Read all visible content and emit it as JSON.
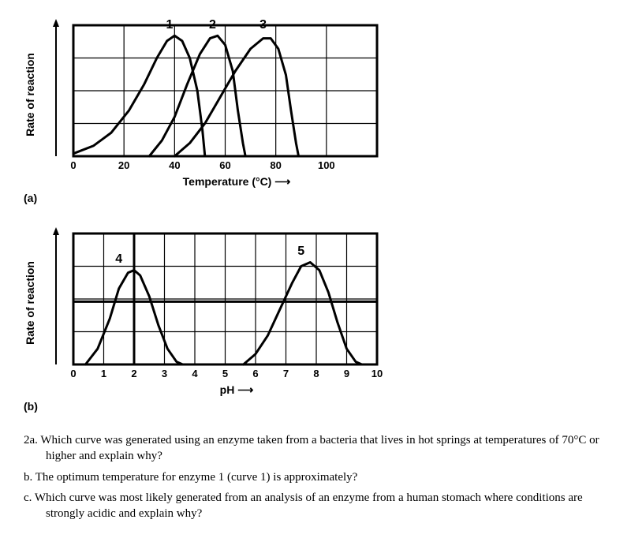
{
  "chartA": {
    "type": "line",
    "panel_label": "(a)",
    "y_label": "Rate of reaction",
    "x_label": "Temperature (°C)",
    "xlim": [
      0,
      120
    ],
    "ylim": [
      0,
      100
    ],
    "xtick_step": 20,
    "xtick_labels": [
      "0",
      "20",
      "40",
      "60",
      "80",
      "100"
    ],
    "grid_cols": 6,
    "grid_rows": 4,
    "border_width": 3,
    "grid_width": 1.2,
    "curve_width": 3,
    "background_color": "#ffffff",
    "line_color": "#000000",
    "grid_color": "#000000",
    "text_fontsize": 13,
    "curve_label_fontsize": 16,
    "curves": [
      {
        "label": "1",
        "label_x": 38,
        "label_y": 100,
        "points": [
          [
            0,
            2
          ],
          [
            8,
            8
          ],
          [
            15,
            18
          ],
          [
            22,
            35
          ],
          [
            28,
            55
          ],
          [
            33,
            75
          ],
          [
            37,
            88
          ],
          [
            40,
            92
          ],
          [
            43,
            88
          ],
          [
            46,
            75
          ],
          [
            49,
            50
          ],
          [
            51,
            20
          ],
          [
            52,
            0
          ]
        ]
      },
      {
        "label": "2",
        "label_x": 55,
        "label_y": 100,
        "points": [
          [
            30,
            0
          ],
          [
            35,
            12
          ],
          [
            40,
            30
          ],
          [
            45,
            55
          ],
          [
            50,
            78
          ],
          [
            54,
            90
          ],
          [
            57,
            92
          ],
          [
            60,
            85
          ],
          [
            63,
            65
          ],
          [
            65,
            35
          ],
          [
            67,
            10
          ],
          [
            68,
            0
          ]
        ]
      },
      {
        "label": "3",
        "label_x": 75,
        "label_y": 100,
        "points": [
          [
            40,
            0
          ],
          [
            46,
            10
          ],
          [
            52,
            25
          ],
          [
            58,
            45
          ],
          [
            64,
            65
          ],
          [
            70,
            82
          ],
          [
            75,
            90
          ],
          [
            78,
            90
          ],
          [
            81,
            82
          ],
          [
            84,
            62
          ],
          [
            86,
            35
          ],
          [
            88,
            10
          ],
          [
            89,
            0
          ]
        ]
      }
    ]
  },
  "chartB": {
    "type": "line",
    "panel_label": "(b)",
    "y_label": "Rate of reaction",
    "x_label": "pH",
    "xlim": [
      0,
      10
    ],
    "ylim": [
      0,
      100
    ],
    "xtick_step": 1,
    "xtick_labels": [
      "0",
      "1",
      "2",
      "3",
      "4",
      "5",
      "6",
      "7",
      "8",
      "9",
      "10"
    ],
    "grid_cols": 10,
    "grid_rows": 4,
    "border_width": 3,
    "grid_width": 1.2,
    "curve_width": 3,
    "background_color": "#ffffff",
    "line_color": "#000000",
    "grid_color": "#000000",
    "text_fontsize": 13,
    "curve_label_fontsize": 16,
    "vertical_emphasis_x": 2,
    "horizontal_emphasis_y": 48,
    "curves": [
      {
        "label": "4",
        "label_x": 1.5,
        "label_y": 80,
        "points": [
          [
            0.4,
            0
          ],
          [
            0.8,
            12
          ],
          [
            1.2,
            35
          ],
          [
            1.5,
            58
          ],
          [
            1.8,
            70
          ],
          [
            2.0,
            72
          ],
          [
            2.2,
            68
          ],
          [
            2.5,
            52
          ],
          [
            2.8,
            30
          ],
          [
            3.1,
            12
          ],
          [
            3.4,
            2
          ],
          [
            3.6,
            0
          ]
        ]
      },
      {
        "label": "5",
        "label_x": 7.5,
        "label_y": 86,
        "points": [
          [
            5.6,
            0
          ],
          [
            6.0,
            8
          ],
          [
            6.4,
            22
          ],
          [
            6.8,
            42
          ],
          [
            7.2,
            62
          ],
          [
            7.5,
            75
          ],
          [
            7.8,
            78
          ],
          [
            8.1,
            72
          ],
          [
            8.4,
            55
          ],
          [
            8.7,
            32
          ],
          [
            9.0,
            12
          ],
          [
            9.3,
            2
          ],
          [
            9.5,
            0
          ]
        ]
      }
    ]
  },
  "questions": {
    "q2a": "2a. Which curve was generated using an enzyme taken from a bacteria that lives in hot springs at temperatures of 70°C or higher and explain why?",
    "qb": "b. The optimum temperature for enzyme 1 (curve 1) is approximately?",
    "qc": "c. Which curve was most likely generated from an analysis of an enzyme from a human stomach where conditions are strongly acidic and explain why?"
  }
}
